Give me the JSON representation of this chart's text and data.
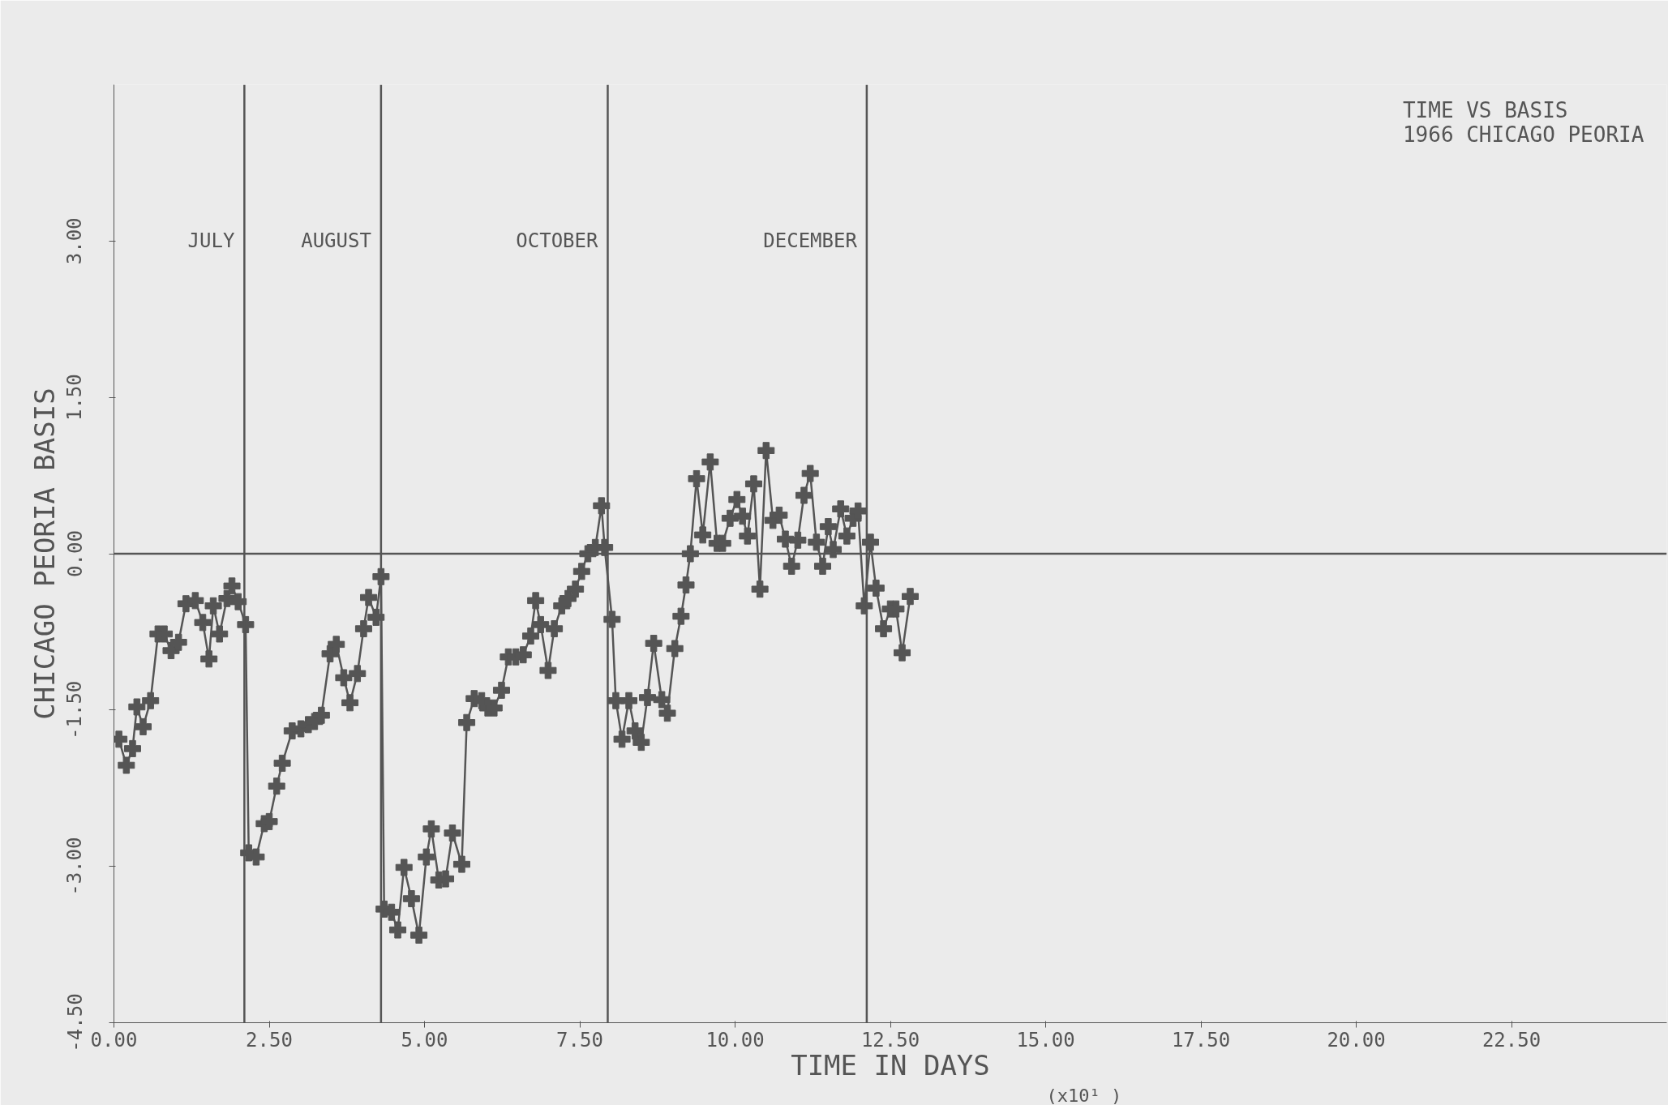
{
  "chart_data": {
    "type": "line",
    "title": "TIME VS BASIS",
    "subtitle": "1966 CHICAGO PEORIA",
    "xlabel": "TIME IN DAYS",
    "ylabel": "CHICAGO PEORIA BASIS",
    "annotations": [
      "(x10¹ )"
    ],
    "x": [
      0.08,
      0.2,
      0.3,
      0.37,
      0.47,
      0.59,
      0.71,
      0.81,
      0.92,
      1.04,
      1.16,
      1.31,
      1.43,
      1.53,
      1.6,
      1.7,
      1.82,
      1.9,
      2.0,
      2.12,
      2.17,
      2.29,
      2.42,
      2.5,
      2.62,
      2.71,
      2.87,
      3.01,
      3.13,
      3.23,
      3.34,
      3.48,
      3.58,
      3.7,
      3.8,
      3.92,
      4.02,
      4.1,
      4.22,
      4.3,
      4.35,
      4.47,
      4.57,
      4.67,
      4.79,
      4.91,
      5.03,
      5.11,
      5.23,
      5.34,
      5.45,
      5.6,
      5.68,
      5.8,
      5.92,
      6.02,
      6.12,
      6.24,
      6.35,
      6.47,
      6.59,
      6.71,
      6.79,
      6.87,
      6.99,
      7.09,
      7.21,
      7.31,
      7.43,
      7.53,
      7.63,
      7.75,
      7.85,
      7.9,
      8.02,
      8.08,
      8.18,
      8.29,
      8.39,
      8.49,
      8.59,
      8.69,
      8.82,
      8.91,
      9.03,
      9.13,
      9.21,
      9.28,
      9.38,
      9.48,
      9.6,
      9.71,
      9.8,
      9.92,
      10.03,
      10.12,
      10.2,
      10.3,
      10.4,
      10.5,
      10.61,
      10.71,
      10.81,
      10.91,
      11.01,
      11.11,
      11.21,
      11.31,
      11.41,
      11.5,
      11.58,
      11.7,
      11.8,
      11.9,
      11.98,
      12.08,
      12.18,
      12.27,
      12.39,
      12.5,
      12.59,
      12.69,
      12.82
    ],
    "series": [
      {
        "color": "#555555",
        "values": [
          -1.78,
          -2.03,
          -1.87,
          -1.47,
          -1.66,
          -1.41,
          -0.77,
          -0.77,
          -0.93,
          -0.85,
          -0.48,
          -0.45,
          -0.66,
          -1.01,
          -0.5,
          -0.77,
          -0.43,
          -0.31,
          -0.46,
          -0.68,
          -2.87,
          -2.91,
          -2.59,
          -2.57,
          -2.23,
          -2.01,
          -1.7,
          -1.68,
          -1.64,
          -1.61,
          -1.55,
          -0.96,
          -0.87,
          -1.19,
          -1.43,
          -1.15,
          -0.72,
          -0.42,
          -0.61,
          -0.22,
          -3.41,
          -3.44,
          -3.61,
          -3.01,
          -3.31,
          -3.66,
          -2.91,
          -2.64,
          -3.13,
          -3.12,
          -2.68,
          -2.98,
          -1.62,
          -1.39,
          -1.41,
          -1.48,
          -1.48,
          -1.31,
          -0.99,
          -0.99,
          -0.97,
          -0.79,
          -0.45,
          -0.68,
          -1.12,
          -0.72,
          -0.5,
          -0.43,
          -0.34,
          -0.17,
          0.0,
          0.06,
          0.46,
          0.06,
          -0.63,
          -1.41,
          -1.78,
          -1.41,
          -1.7,
          -1.81,
          -1.38,
          -0.86,
          -1.4,
          -1.53,
          -0.91,
          -0.6,
          -0.3,
          0.0,
          0.72,
          0.18,
          0.88,
          0.1,
          0.1,
          0.34,
          0.52,
          0.36,
          0.17,
          0.67,
          -0.34,
          0.99,
          0.32,
          0.37,
          0.14,
          -0.12,
          0.13,
          0.56,
          0.77,
          0.11,
          -0.12,
          0.26,
          0.04,
          0.43,
          0.17,
          0.34,
          0.41,
          -0.5,
          0.11,
          -0.33,
          -0.72,
          -0.53,
          -0.53,
          -0.95,
          -0.41
        ]
      }
    ],
    "xlim": [
      0,
      25
    ],
    "xticks": [
      {
        "value": 0,
        "label": "0.00"
      },
      {
        "value": 2.5,
        "label": "2.50"
      },
      {
        "value": 5,
        "label": "5.00"
      },
      {
        "value": 7.5,
        "label": "7.50"
      },
      {
        "value": 10,
        "label": "10.00"
      },
      {
        "value": 12.5,
        "label": "12.50"
      },
      {
        "value": 15,
        "label": "15.00"
      },
      {
        "value": 17.5,
        "label": "17.50"
      },
      {
        "value": 20,
        "label": "20.00"
      },
      {
        "value": 22.5,
        "label": "22.50"
      }
    ],
    "ylim": [
      -4.5,
      4.5
    ],
    "yticks": [
      {
        "value": -4.5,
        "label": "-4.50"
      },
      {
        "value": -3,
        "label": "-3.00"
      },
      {
        "value": -1.5,
        "label": "-1.50"
      },
      {
        "value": 0,
        "label": "0.00"
      },
      {
        "value": 1.5,
        "label": "1.50"
      },
      {
        "value": 3,
        "label": "3.00"
      }
    ],
    "ref_lines": [
      {
        "axis": "y",
        "value": 0
      },
      {
        "axis": "x",
        "value": 2.1,
        "label": "JULY"
      },
      {
        "axis": "x",
        "value": 4.3,
        "label": "AUGUST"
      },
      {
        "axis": "x",
        "value": 7.95,
        "label": "OCTOBER"
      },
      {
        "axis": "x",
        "value": 12.12,
        "label": "DECEMBER"
      }
    ],
    "marker": "cross",
    "line_style": "solid",
    "grid": false
  }
}
